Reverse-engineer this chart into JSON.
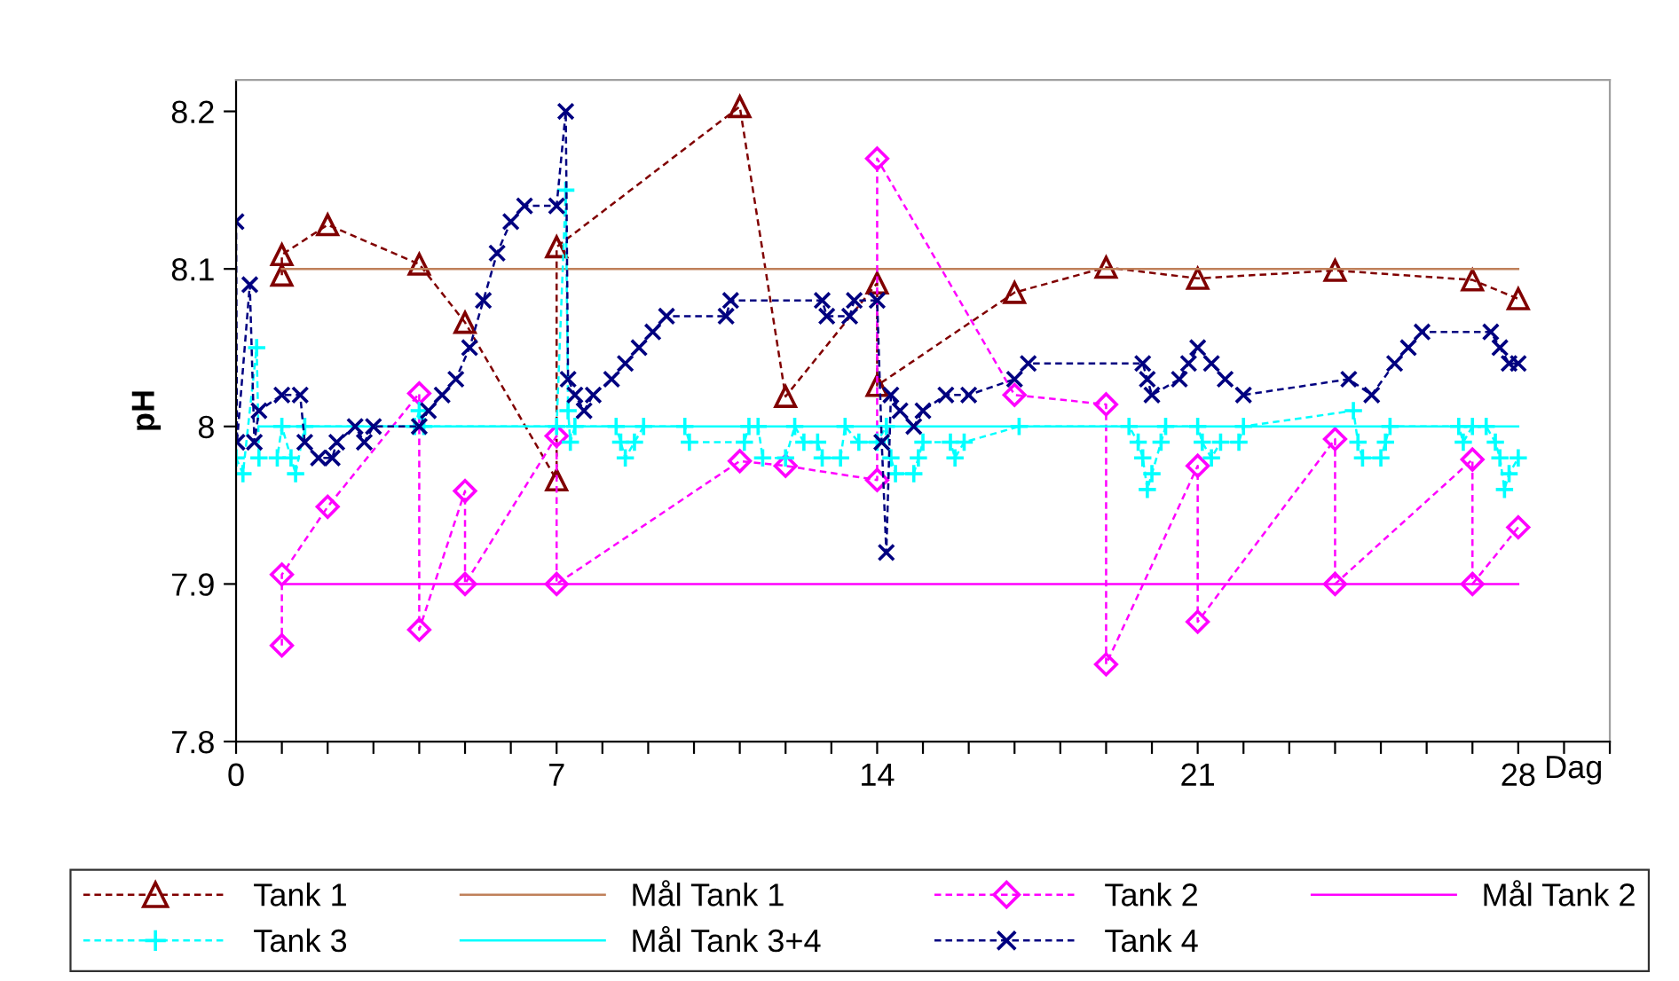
{
  "chart_data": {
    "type": "line",
    "xlabel": "Dag",
    "ylabel": "pH",
    "xlim": [
      0,
      30
    ],
    "ylim": [
      7.8,
      8.22
    ],
    "xticks": [
      0,
      {
        "value": 1,
        "label": null
      },
      {
        "value": 2,
        "label": null
      },
      {
        "value": 3,
        "label": null
      },
      {
        "value": 4,
        "label": null
      },
      {
        "value": 5,
        "label": null
      },
      {
        "value": 6,
        "label": null
      },
      7,
      {
        "value": 8,
        "label": null
      },
      {
        "value": 9,
        "label": null
      },
      {
        "value": 10,
        "label": null
      },
      {
        "value": 11,
        "label": null
      },
      {
        "value": 12,
        "label": null
      },
      {
        "value": 13,
        "label": null
      },
      14,
      {
        "value": 15,
        "label": null
      },
      {
        "value": 16,
        "label": null
      },
      {
        "value": 17,
        "label": null
      },
      {
        "value": 18,
        "label": null
      },
      {
        "value": 19,
        "label": null
      },
      {
        "value": 20,
        "label": null
      },
      21,
      {
        "value": 22,
        "label": null
      },
      {
        "value": 23,
        "label": null
      },
      {
        "value": 24,
        "label": null
      },
      {
        "value": 25,
        "label": null
      },
      {
        "value": 26,
        "label": null
      },
      {
        "value": 27,
        "label": null
      },
      28,
      {
        "value": 29,
        "label": null
      },
      {
        "value": 30,
        "label": null
      }
    ],
    "yticks": [
      7.8,
      7.9,
      8,
      8.1,
      8.2
    ],
    "grid": false,
    "legend": "bottom",
    "series": [
      {
        "name": "Tank 1",
        "color": "#800000",
        "marker": "triangle",
        "line_style": "dashed",
        "x": [
          1,
          1,
          2,
          4,
          5,
          7,
          7,
          11,
          12,
          14,
          14,
          17,
          19,
          21,
          24,
          27,
          28
        ],
        "values": [
          8.096,
          8.109,
          8.128,
          8.103,
          8.066,
          7.966,
          8.114,
          8.203,
          8.019,
          8.091,
          8.026,
          8.085,
          8.101,
          8.094,
          8.099,
          8.093,
          8.081
        ]
      },
      {
        "name": "Mål Tank 1",
        "color": "#c0805a",
        "marker": "none",
        "line_style": "solid",
        "x": [
          1,
          28
        ],
        "values": [
          8.1,
          8.1
        ]
      },
      {
        "name": "Tank 2",
        "color": "#ff00ff",
        "marker": "diamond",
        "line_style": "dashed",
        "x": [
          1,
          1,
          2,
          4,
          4,
          5,
          5,
          7,
          7,
          11,
          12,
          14,
          14,
          17,
          19,
          19,
          21,
          21,
          24,
          24,
          27,
          27,
          28
        ],
        "values": [
          7.861,
          7.906,
          7.949,
          8.021,
          7.871,
          7.959,
          7.9,
          7.994,
          7.9,
          7.978,
          7.975,
          7.966,
          8.17,
          8.02,
          8.014,
          7.849,
          7.975,
          7.876,
          7.992,
          7.9,
          7.979,
          7.9,
          7.936
        ]
      },
      {
        "name": "Mål Tank 2",
        "color": "#ff00ff",
        "marker": "none",
        "line_style": "solid",
        "x": [
          1,
          28
        ],
        "values": [
          7.9,
          7.9
        ]
      },
      {
        "name": "Tank 3",
        "color": "#00ffff",
        "marker": "plus",
        "line_style": "dashed",
        "x": [
          0,
          0.15,
          0.45,
          0.5,
          0.9,
          1.0,
          1.2,
          1.3,
          1.5,
          3.9,
          4.0,
          4.1,
          7.0,
          7.2,
          7.25,
          7.3,
          7.4,
          8.3,
          8.4,
          8.5,
          8.7,
          8.9,
          9.8,
          9.9,
          11.1,
          11.2,
          11.4,
          11.5,
          12.0,
          12.2,
          12.4,
          12.7,
          12.8,
          13.2,
          13.3,
          13.6,
          14.0,
          14.2,
          14.3,
          14.4,
          14.8,
          14.9,
          15.0,
          15.6,
          15.7,
          15.9,
          17.1,
          19.5,
          19.7,
          19.8,
          19.9,
          20.0,
          20.2,
          20.3,
          21.0,
          21.1,
          21.3,
          21.5,
          21.9,
          22.0,
          24.4,
          24.5,
          24.6,
          25.0,
          25.1,
          25.2,
          26.7,
          26.8,
          27.0,
          27.3,
          27.5,
          27.6,
          27.7,
          27.8,
          28.0
        ],
        "values": [
          7.98,
          7.97,
          8.05,
          7.98,
          7.98,
          8.0,
          7.98,
          7.97,
          8.0,
          8.0,
          8.01,
          8.0,
          8.0,
          8.15,
          8.01,
          7.99,
          8.0,
          8.0,
          7.99,
          7.98,
          7.99,
          8.0,
          8.0,
          7.99,
          7.99,
          8.0,
          8.0,
          7.98,
          7.98,
          8.0,
          7.99,
          7.99,
          7.98,
          7.98,
          8.0,
          7.99,
          7.99,
          8.0,
          7.98,
          7.97,
          7.97,
          7.98,
          7.99,
          7.99,
          7.98,
          7.99,
          8.0,
          8.0,
          7.99,
          7.98,
          7.96,
          7.97,
          7.99,
          8.0,
          8.0,
          7.99,
          7.98,
          7.99,
          7.99,
          8.0,
          8.01,
          7.99,
          7.98,
          7.98,
          7.99,
          8.0,
          8.0,
          7.99,
          8.0,
          8.0,
          7.99,
          7.98,
          7.96,
          7.97,
          7.98
        ]
      },
      {
        "name": "Mål Tank 3+4",
        "color": "#00ffff",
        "marker": "none",
        "line_style": "solid",
        "x": [
          0.5,
          28
        ],
        "values": [
          8.0,
          8.0
        ]
      },
      {
        "name": "Tank 4",
        "color": "#000080",
        "marker": "cross",
        "line_style": "dashed",
        "x": [
          0,
          0.02,
          0.3,
          0.4,
          0.5,
          1.0,
          1.4,
          1.5,
          1.8,
          2.1,
          2.2,
          2.6,
          2.8,
          3.0,
          4.0,
          4.2,
          4.5,
          4.8,
          5.1,
          5.4,
          5.7,
          6.0,
          6.3,
          7.0,
          7.2,
          7.25,
          7.4,
          7.6,
          7.8,
          8.2,
          8.5,
          8.8,
          9.1,
          9.4,
          10.7,
          10.8,
          12.8,
          12.9,
          13.4,
          13.5,
          14.0,
          14.1,
          14.2,
          14.3,
          14.5,
          14.8,
          15.0,
          15.5,
          16.0,
          17.0,
          17.3,
          19.8,
          19.9,
          20.0,
          20.6,
          20.8,
          21.0,
          21.3,
          21.6,
          22.0,
          24.3,
          24.8,
          25.3,
          25.6,
          25.9,
          27.4,
          27.6,
          27.8,
          28.0
        ],
        "values": [
          8.13,
          7.99,
          8.09,
          7.99,
          8.01,
          8.02,
          8.02,
          7.99,
          7.98,
          7.98,
          7.99,
          8.0,
          7.99,
          8.0,
          8.0,
          8.01,
          8.02,
          8.03,
          8.05,
          8.08,
          8.11,
          8.13,
          8.14,
          8.14,
          8.2,
          8.03,
          8.02,
          8.01,
          8.02,
          8.03,
          8.04,
          8.05,
          8.06,
          8.07,
          8.07,
          8.08,
          8.08,
          8.07,
          8.07,
          8.08,
          8.08,
          7.99,
          7.92,
          8.02,
          8.01,
          8.0,
          8.01,
          8.02,
          8.02,
          8.03,
          8.04,
          8.04,
          8.03,
          8.02,
          8.03,
          8.04,
          8.05,
          8.04,
          8.03,
          8.02,
          8.03,
          8.02,
          8.04,
          8.05,
          8.06,
          8.06,
          8.05,
          8.04,
          8.04
        ]
      }
    ]
  }
}
